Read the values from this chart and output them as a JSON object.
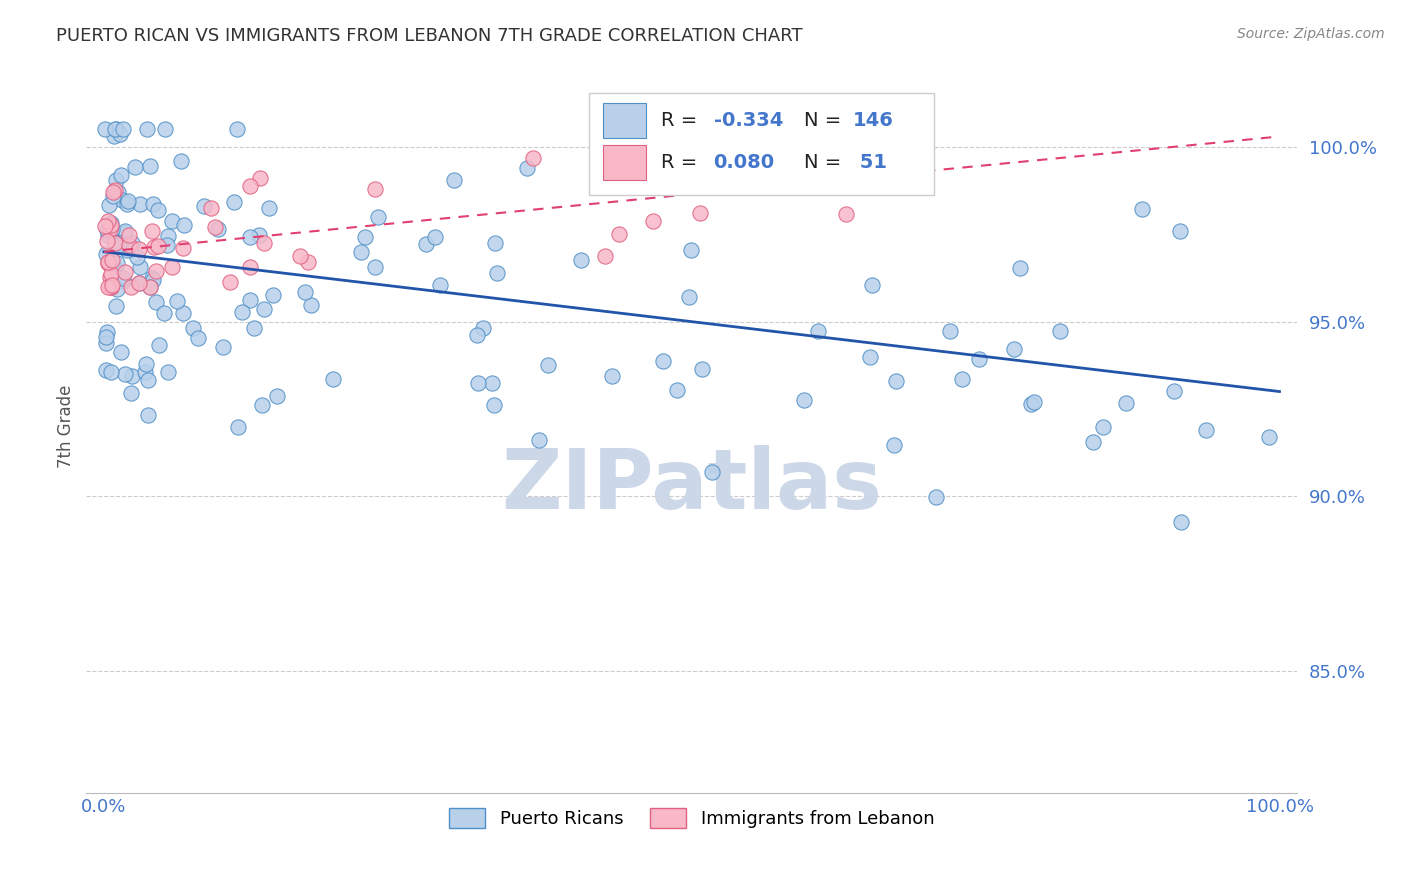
{
  "title": "PUERTO RICAN VS IMMIGRANTS FROM LEBANON 7TH GRADE CORRELATION CHART",
  "source": "Source: ZipAtlas.com",
  "ylabel": "7th Grade",
  "legend_label_blue": "Puerto Ricans",
  "legend_label_pink": "Immigrants from Lebanon",
  "r_blue": "-0.334",
  "n_blue": "146",
  "r_pink": "0.080",
  "n_pink": "51",
  "blue_color": "#b8d0ea",
  "blue_edge_color": "#5090c8",
  "blue_line_color": "#2255aa",
  "pink_color": "#f8b8c8",
  "pink_edge_color": "#e06080",
  "pink_line_color": "#e04070",
  "background_color": "#ffffff",
  "grid_color": "#cccccc",
  "axis_label_color": "#4477cc",
  "title_color": "#333333",
  "watermark_color": "#ccd8e8",
  "blue_trend_start": 0.97,
  "blue_trend_end": 0.93,
  "pink_trend_start": 0.97,
  "pink_trend_end": 1.003,
  "xlim_min": 0.0,
  "xlim_max": 1.0,
  "ylim_min": 0.815,
  "ylim_max": 1.025,
  "yticks": [
    0.85,
    0.9,
    0.95,
    1.0
  ],
  "ytick_labels": [
    "85.0%",
    "90.0%",
    "95.0%",
    "100.0%"
  ]
}
